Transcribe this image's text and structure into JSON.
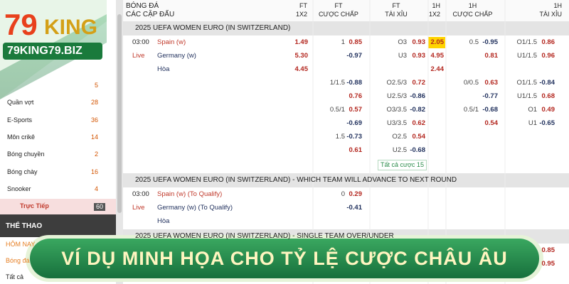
{
  "logo": {
    "number": "79",
    "brand": "KING",
    "domain": "79KING79.BIZ"
  },
  "sidebar": {
    "items": [
      {
        "count": "5"
      },
      {
        "label": "Quần vợt",
        "count": "28"
      },
      {
        "label": "E-Sports",
        "count": "36"
      },
      {
        "label": "Môn crikê",
        "count": "14"
      },
      {
        "label": "Bóng chuyền",
        "count": "2"
      },
      {
        "label": "Bóng chày",
        "count": "16"
      },
      {
        "label": "Snooker",
        "count": "4"
      },
      {
        "label": "Trực Tiếp",
        "count": "60"
      }
    ],
    "section": "THỂ THAO",
    "links": [
      "HÔM NAY",
      "Bóng đá",
      "Tất cả"
    ]
  },
  "header": {
    "sport": "BÓNG ĐÁ",
    "matches": "CÁC CẶP ĐẤU",
    "columns": [
      {
        "period": "FT",
        "market": "1X2"
      },
      {
        "period": "FT",
        "market": "CƯỢC CHẤP"
      },
      {
        "period": "FT",
        "market": "TÀI XỈU"
      },
      {
        "period": "1H",
        "market": "1X2"
      },
      {
        "period": "1H",
        "market": "CƯỢC CHẤP"
      },
      {
        "period": "1H",
        "market": "TÀI XỈU"
      }
    ]
  },
  "sections": [
    {
      "title": "2025 UEFA WOMEN EURO (IN SWITZERLAND)",
      "rows": [
        {
          "time": "03:00",
          "team": "Spain (w)",
          "odds": [
            "1.49",
            {
              "line": "1",
              "odd": "0.85"
            },
            {
              "line": "O3",
              "odd": "0.93"
            },
            "2.05",
            {
              "line": "0.5",
              "odd": "-0.95"
            },
            {
              "line": "O1/1.5",
              "odd": "0.86"
            }
          ]
        },
        {
          "time": "Live",
          "team": "Germany (w)",
          "odds": [
            "5.30",
            {
              "odd": "-0.97"
            },
            {
              "line": "U3",
              "odd": "0.93"
            },
            "4.95",
            {
              "odd": "0.81"
            },
            {
              "line": "U1/1.5",
              "odd": "0.96"
            }
          ]
        },
        {
          "team": "Hòa",
          "odds": [
            "4.45",
            null,
            null,
            "2.44",
            null,
            null
          ]
        },
        {
          "odds": [
            null,
            {
              "line": "1/1.5",
              "odd": "-0.88"
            },
            {
              "line": "O2.5/3",
              "odd": "0.72"
            },
            null,
            {
              "line": "0/0.5",
              "odd": "0.63"
            },
            {
              "line": "O1/1.5",
              "odd": "-0.84"
            }
          ]
        },
        {
          "odds": [
            null,
            {
              "odd": "0.76"
            },
            {
              "line": "U2.5/3",
              "odd": "-0.86"
            },
            null,
            {
              "odd": "-0.77"
            },
            {
              "line": "U1/1.5",
              "odd": "0.68"
            }
          ]
        },
        {
          "odds": [
            null,
            {
              "line": "0.5/1",
              "odd": "0.57"
            },
            {
              "line": "O3/3.5",
              "odd": "-0.82"
            },
            null,
            {
              "line": "0.5/1",
              "odd": "-0.68"
            },
            {
              "line": "O1",
              "odd": "0.49"
            }
          ]
        },
        {
          "odds": [
            null,
            {
              "odd": "-0.69"
            },
            {
              "line": "U3/3.5",
              "odd": "0.62"
            },
            null,
            {
              "odd": "0.54"
            },
            {
              "line": "U1",
              "odd": "-0.65"
            }
          ]
        },
        {
          "odds": [
            null,
            {
              "line": "1.5",
              "odd": "-0.73"
            },
            {
              "line": "O2.5",
              "odd": "0.54"
            },
            null,
            null,
            null
          ]
        },
        {
          "odds": [
            null,
            {
              "odd": "0.61"
            },
            {
              "line": "U2.5",
              "odd": "-0.68"
            },
            null,
            null,
            null
          ]
        }
      ],
      "more": "Tất cả cược 15"
    },
    {
      "title": "2025 UEFA WOMEN EURO (IN SWITZERLAND) - WHICH TEAM WILL ADVANCE TO NEXT ROUND",
      "rows": [
        {
          "time": "03:00",
          "team": "Spain (w) (To Qualify)",
          "odds": [
            null,
            {
              "line": "0",
              "odd": "0.29"
            },
            null,
            null,
            null,
            null
          ]
        },
        {
          "time": "Live",
          "team": "Germany (w) (To Qualify)",
          "odds": [
            null,
            {
              "odd": "-0.41"
            },
            null,
            null,
            null,
            null
          ]
        },
        {
          "team": "Hòa",
          "odds": [
            null,
            null,
            null,
            null,
            null,
            null
          ]
        }
      ]
    },
    {
      "title": "2025 UEFA WOMEN EURO (IN SWITZERLAND) - SINGLE TEAM OVER/UNDER",
      "rows": [
        {
          "odds": [
            null,
            null,
            null,
            null,
            null,
            {
              "odd": "0.85"
            }
          ]
        },
        {
          "odds": [
            null,
            null,
            null,
            null,
            null,
            {
              "odd": "0.95"
            }
          ]
        }
      ]
    }
  ],
  "banner": "VÍ DỤ MINH HỌA CHO TỶ LỆ CƯỢC CHÂU ÂU"
}
